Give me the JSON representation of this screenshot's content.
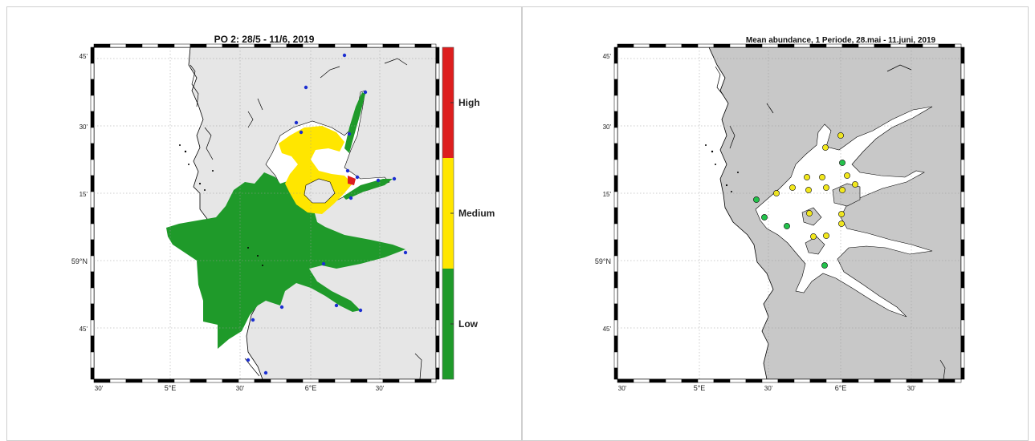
{
  "left_map": {
    "title": "PO 2: 28/5 - 11/6, 2019",
    "lat_ticks": [
      "45'",
      "30'",
      "15'",
      "59°N",
      "45'"
    ],
    "lon_ticks": [
      "30'",
      "5°E",
      "30'",
      "6°E",
      "30'"
    ],
    "colorbar": {
      "labels": [
        "High",
        "Medium",
        "Low"
      ],
      "colors": {
        "high": "#dd1e1e",
        "medium": "#ffe600",
        "low": "#1f9a2a"
      }
    },
    "colors": {
      "land": "#e6e6e6",
      "sea": "#ffffff",
      "coast": "#000000",
      "station": "#1c2fd1"
    }
  },
  "right_map": {
    "title": "Mean abundance, 1 Periode, 28.mai - 11.juni, 2019",
    "lat_ticks": [
      "45'",
      "30'",
      "15'",
      "59°N",
      "45'"
    ],
    "lon_ticks": [
      "30'",
      "5°E",
      "30'",
      "6°E",
      "30'"
    ],
    "colors": {
      "land": "#c8c8c8",
      "sea": "#ffffff",
      "coast": "#000000",
      "green": "#22c24a",
      "yellow": "#f2e81c"
    },
    "stations": [
      {
        "color": "yellow"
      },
      {
        "color": "yellow"
      },
      {
        "color": "yellow"
      },
      {
        "color": "yellow"
      },
      {
        "color": "green"
      },
      {
        "color": "yellow"
      },
      {
        "color": "yellow"
      },
      {
        "color": "yellow"
      },
      {
        "color": "yellow"
      },
      {
        "color": "yellow"
      },
      {
        "color": "yellow"
      },
      {
        "color": "yellow"
      },
      {
        "color": "green"
      },
      {
        "color": "green"
      },
      {
        "color": "yellow"
      },
      {
        "color": "yellow"
      },
      {
        "color": "yellow"
      },
      {
        "color": "yellow"
      },
      {
        "color": "green"
      },
      {
        "color": "yellow"
      },
      {
        "color": "green"
      }
    ]
  }
}
